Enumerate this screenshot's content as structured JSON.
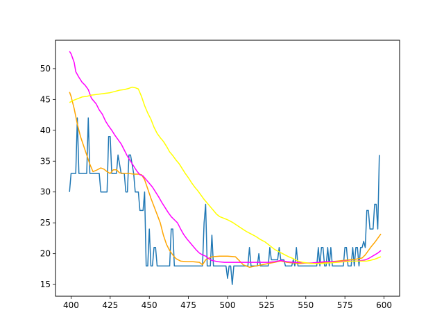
{
  "chart_data": {
    "type": "line",
    "title": "",
    "xlabel": "",
    "ylabel": "",
    "xlim": [
      390.05,
      609.95
    ],
    "ylim": [
      13.1,
      54.6
    ],
    "xticks": [
      400,
      425,
      450,
      475,
      500,
      525,
      550,
      575,
      600
    ],
    "yticks": [
      15,
      20,
      25,
      30,
      35,
      40,
      45,
      50
    ],
    "grid": false,
    "legend": "none",
    "series": [
      {
        "color": "#1f77b4",
        "points": [
          [
            399,
            30
          ],
          [
            400,
            33
          ],
          [
            403,
            33
          ],
          [
            404,
            42
          ],
          [
            405,
            33
          ],
          [
            410,
            33
          ],
          [
            411,
            42
          ],
          [
            412,
            33
          ],
          [
            418,
            33
          ],
          [
            419,
            30
          ],
          [
            423,
            30
          ],
          [
            424,
            39
          ],
          [
            425,
            39
          ],
          [
            426,
            33
          ],
          [
            429,
            33
          ],
          [
            430,
            36
          ],
          [
            432,
            33
          ],
          [
            434,
            33
          ],
          [
            435,
            30
          ],
          [
            436,
            30
          ],
          [
            437,
            36
          ],
          [
            438,
            36
          ],
          [
            440,
            33
          ],
          [
            441,
            30
          ],
          [
            443,
            30
          ],
          [
            444,
            27
          ],
          [
            446,
            27
          ],
          [
            447,
            30
          ],
          [
            448,
            18
          ],
          [
            449,
            18
          ],
          [
            450,
            24
          ],
          [
            451,
            18
          ],
          [
            452,
            18
          ],
          [
            453,
            21
          ],
          [
            454,
            21
          ],
          [
            455,
            18
          ],
          [
            463,
            18
          ],
          [
            464,
            24
          ],
          [
            465,
            24
          ],
          [
            466,
            18
          ],
          [
            484,
            18
          ],
          [
            485,
            25
          ],
          [
            486,
            28
          ],
          [
            487,
            18
          ],
          [
            489,
            18
          ],
          [
            490,
            23
          ],
          [
            491,
            18
          ],
          [
            499,
            18
          ],
          [
            500,
            16
          ],
          [
            501,
            18
          ],
          [
            502,
            18
          ],
          [
            503,
            15
          ],
          [
            504,
            18
          ],
          [
            513,
            18
          ],
          [
            514,
            21
          ],
          [
            515,
            18
          ],
          [
            519,
            18
          ],
          [
            520,
            20
          ],
          [
            521,
            18
          ],
          [
            526,
            18
          ],
          [
            527,
            21
          ],
          [
            528,
            19
          ],
          [
            532,
            19
          ],
          [
            533,
            21
          ],
          [
            534,
            19
          ],
          [
            536,
            19
          ],
          [
            537,
            18
          ],
          [
            541,
            18
          ],
          [
            542,
            19
          ],
          [
            543,
            18
          ],
          [
            544,
            21
          ],
          [
            545,
            18
          ],
          [
            557,
            18
          ],
          [
            558,
            21
          ],
          [
            559,
            18
          ],
          [
            560,
            21
          ],
          [
            561,
            21
          ],
          [
            562,
            18
          ],
          [
            563,
            18
          ],
          [
            564,
            21
          ],
          [
            565,
            18
          ],
          [
            566,
            21
          ],
          [
            567,
            18
          ],
          [
            574,
            18
          ],
          [
            575,
            21
          ],
          [
            576,
            21
          ],
          [
            577,
            18
          ],
          [
            579,
            18
          ],
          [
            580,
            21
          ],
          [
            581,
            18
          ],
          [
            582,
            21
          ],
          [
            583,
            21
          ],
          [
            584,
            18
          ],
          [
            585,
            21
          ],
          [
            586,
            21
          ],
          [
            587,
            22
          ],
          [
            588,
            21
          ],
          [
            589,
            27
          ],
          [
            590,
            27
          ],
          [
            591,
            24
          ],
          [
            593,
            24
          ],
          [
            594,
            28
          ],
          [
            595,
            28
          ],
          [
            596,
            24
          ],
          [
            597,
            36
          ]
        ]
      },
      {
        "color": "#ffa500",
        "points": [
          [
            399,
            46.2
          ],
          [
            400,
            45.5
          ],
          [
            402,
            43.5
          ],
          [
            404,
            41
          ],
          [
            406,
            39
          ],
          [
            408,
            37.5
          ],
          [
            410,
            36
          ],
          [
            412,
            34.5
          ],
          [
            414,
            33.3
          ],
          [
            416,
            33.5
          ],
          [
            419,
            33.9
          ],
          [
            421,
            33.7
          ],
          [
            423,
            33.3
          ],
          [
            425,
            33
          ],
          [
            427,
            33.6
          ],
          [
            429,
            33.6
          ],
          [
            431,
            33.1
          ],
          [
            434,
            33
          ],
          [
            437,
            33
          ],
          [
            440,
            32.9
          ],
          [
            443,
            32.9
          ],
          [
            445,
            32.8
          ],
          [
            447,
            32
          ],
          [
            449,
            30.5
          ],
          [
            451,
            29
          ],
          [
            454,
            27
          ],
          [
            457,
            25
          ],
          [
            459,
            23
          ],
          [
            461,
            21.5
          ],
          [
            463,
            20.5
          ],
          [
            465,
            19.8
          ],
          [
            467,
            19.2
          ],
          [
            470,
            18.8
          ],
          [
            474,
            18.7
          ],
          [
            478,
            18.7
          ],
          [
            482,
            18.6
          ],
          [
            484,
            18.2
          ],
          [
            486,
            19
          ],
          [
            490,
            19.5
          ],
          [
            495,
            19.6
          ],
          [
            500,
            19.6
          ],
          [
            505,
            19.5
          ],
          [
            507,
            19
          ],
          [
            510,
            18.2
          ],
          [
            514,
            17.8
          ],
          [
            518,
            18
          ],
          [
            522,
            18.2
          ],
          [
            526,
            18.4
          ],
          [
            530,
            18.6
          ],
          [
            534,
            18.8
          ],
          [
            538,
            18.6
          ],
          [
            542,
            18.5
          ],
          [
            546,
            18.4
          ],
          [
            550,
            18.5
          ],
          [
            554,
            18.4
          ],
          [
            558,
            18.5
          ],
          [
            562,
            18.6
          ],
          [
            566,
            18.7
          ],
          [
            570,
            18.8
          ],
          [
            574,
            18.9
          ],
          [
            578,
            19
          ],
          [
            582,
            19.1
          ],
          [
            586,
            19.3
          ],
          [
            588,
            19.8
          ],
          [
            590,
            20.5
          ],
          [
            592,
            21.2
          ],
          [
            594,
            21.8
          ],
          [
            596,
            22.5
          ],
          [
            598,
            23.2
          ]
        ]
      },
      {
        "color": "#ff00ff",
        "points": [
          [
            399,
            52.8
          ],
          [
            400,
            52.4
          ],
          [
            402,
            51
          ],
          [
            403,
            49.5
          ],
          [
            405,
            48.6
          ],
          [
            407,
            47.8
          ],
          [
            409,
            47.3
          ],
          [
            411,
            46.6
          ],
          [
            413,
            45.2
          ],
          [
            416,
            44.3
          ],
          [
            418,
            43.3
          ],
          [
            420,
            42.6
          ],
          [
            422,
            41.5
          ],
          [
            424,
            40.7
          ],
          [
            426,
            40
          ],
          [
            428,
            39.2
          ],
          [
            430,
            38.5
          ],
          [
            432,
            37.8
          ],
          [
            434,
            36.8
          ],
          [
            436,
            35.8
          ],
          [
            438,
            35
          ],
          [
            440,
            34.2
          ],
          [
            442,
            33.4
          ],
          [
            444,
            32.8
          ],
          [
            446,
            32.6
          ],
          [
            448,
            32
          ],
          [
            450,
            31.4
          ],
          [
            452,
            30.8
          ],
          [
            454,
            30
          ],
          [
            456,
            29.2
          ],
          [
            458,
            28.3
          ],
          [
            460,
            27.5
          ],
          [
            462,
            26.7
          ],
          [
            464,
            26
          ],
          [
            466,
            25.5
          ],
          [
            468,
            25
          ],
          [
            470,
            24
          ],
          [
            472,
            23.1
          ],
          [
            474,
            22.4
          ],
          [
            476,
            21.8
          ],
          [
            478,
            21.2
          ],
          [
            480,
            20.6
          ],
          [
            482,
            20.1
          ],
          [
            484,
            19.8
          ],
          [
            486,
            19.6
          ],
          [
            488,
            19.2
          ],
          [
            490,
            18.9
          ],
          [
            494,
            18.7
          ],
          [
            498,
            18.6
          ],
          [
            502,
            18.6
          ],
          [
            506,
            18.6
          ],
          [
            510,
            18.6
          ],
          [
            514,
            18.6
          ],
          [
            518,
            18.6
          ],
          [
            522,
            18.6
          ],
          [
            526,
            18.6
          ],
          [
            530,
            18.7
          ],
          [
            534,
            18.9
          ],
          [
            538,
            18.7
          ],
          [
            542,
            18.6
          ],
          [
            546,
            18.6
          ],
          [
            550,
            18.5
          ],
          [
            554,
            18.5
          ],
          [
            558,
            18.6
          ],
          [
            562,
            18.7
          ],
          [
            566,
            18.7
          ],
          [
            570,
            18.7
          ],
          [
            574,
            18.8
          ],
          [
            578,
            18.8
          ],
          [
            582,
            18.8
          ],
          [
            586,
            18.9
          ],
          [
            588,
            19
          ],
          [
            590,
            19.2
          ],
          [
            592,
            19.5
          ],
          [
            594,
            19.8
          ],
          [
            596,
            20.1
          ],
          [
            598,
            20.5
          ]
        ]
      },
      {
        "color": "#ffff00",
        "points": [
          [
            399,
            44.5
          ],
          [
            401,
            44.8
          ],
          [
            403,
            45
          ],
          [
            405,
            45.2
          ],
          [
            407,
            45.4
          ],
          [
            410,
            45.5
          ],
          [
            413,
            45.7
          ],
          [
            416,
            45.8
          ],
          [
            419,
            45.9
          ],
          [
            422,
            46
          ],
          [
            425,
            46.1
          ],
          [
            428,
            46.3
          ],
          [
            431,
            46.5
          ],
          [
            434,
            46.6
          ],
          [
            437,
            46.8
          ],
          [
            439,
            47
          ],
          [
            441,
            46.9
          ],
          [
            443,
            46.7
          ],
          [
            445,
            45.5
          ],
          [
            447,
            44
          ],
          [
            449,
            42.8
          ],
          [
            451,
            41.8
          ],
          [
            453,
            40.5
          ],
          [
            455,
            39.5
          ],
          [
            457,
            38.8
          ],
          [
            459,
            38.2
          ],
          [
            461,
            37.4
          ],
          [
            463,
            36.5
          ],
          [
            465,
            35.9
          ],
          [
            467,
            35.2
          ],
          [
            469,
            34.6
          ],
          [
            471,
            33.8
          ],
          [
            473,
            33
          ],
          [
            475,
            32.3
          ],
          [
            477,
            31.5
          ],
          [
            479,
            30.8
          ],
          [
            481,
            30.2
          ],
          [
            483,
            29.5
          ],
          [
            485,
            28.8
          ],
          [
            487,
            28.2
          ],
          [
            489,
            27.6
          ],
          [
            491,
            27
          ],
          [
            493,
            26.4
          ],
          [
            495,
            26
          ],
          [
            497,
            25.8
          ],
          [
            500,
            25.5
          ],
          [
            503,
            25.1
          ],
          [
            506,
            24.6
          ],
          [
            509,
            24.1
          ],
          [
            512,
            23.6
          ],
          [
            515,
            23.2
          ],
          [
            518,
            22.8
          ],
          [
            521,
            22.3
          ],
          [
            524,
            21.9
          ],
          [
            527,
            21.3
          ],
          [
            530,
            20.7
          ],
          [
            533,
            20.3
          ],
          [
            536,
            19.9
          ],
          [
            539,
            19.5
          ],
          [
            542,
            19.2
          ],
          [
            545,
            18.8
          ],
          [
            548,
            18.6
          ],
          [
            551,
            18.5
          ],
          [
            555,
            18.4
          ],
          [
            560,
            18.4
          ],
          [
            565,
            18.5
          ],
          [
            570,
            18.6
          ],
          [
            575,
            18.7
          ],
          [
            580,
            18.8
          ],
          [
            585,
            18.8
          ],
          [
            589,
            18.8
          ],
          [
            591,
            18.9
          ],
          [
            594,
            19.1
          ],
          [
            596,
            19.3
          ],
          [
            598,
            19.5
          ]
        ]
      }
    ]
  }
}
